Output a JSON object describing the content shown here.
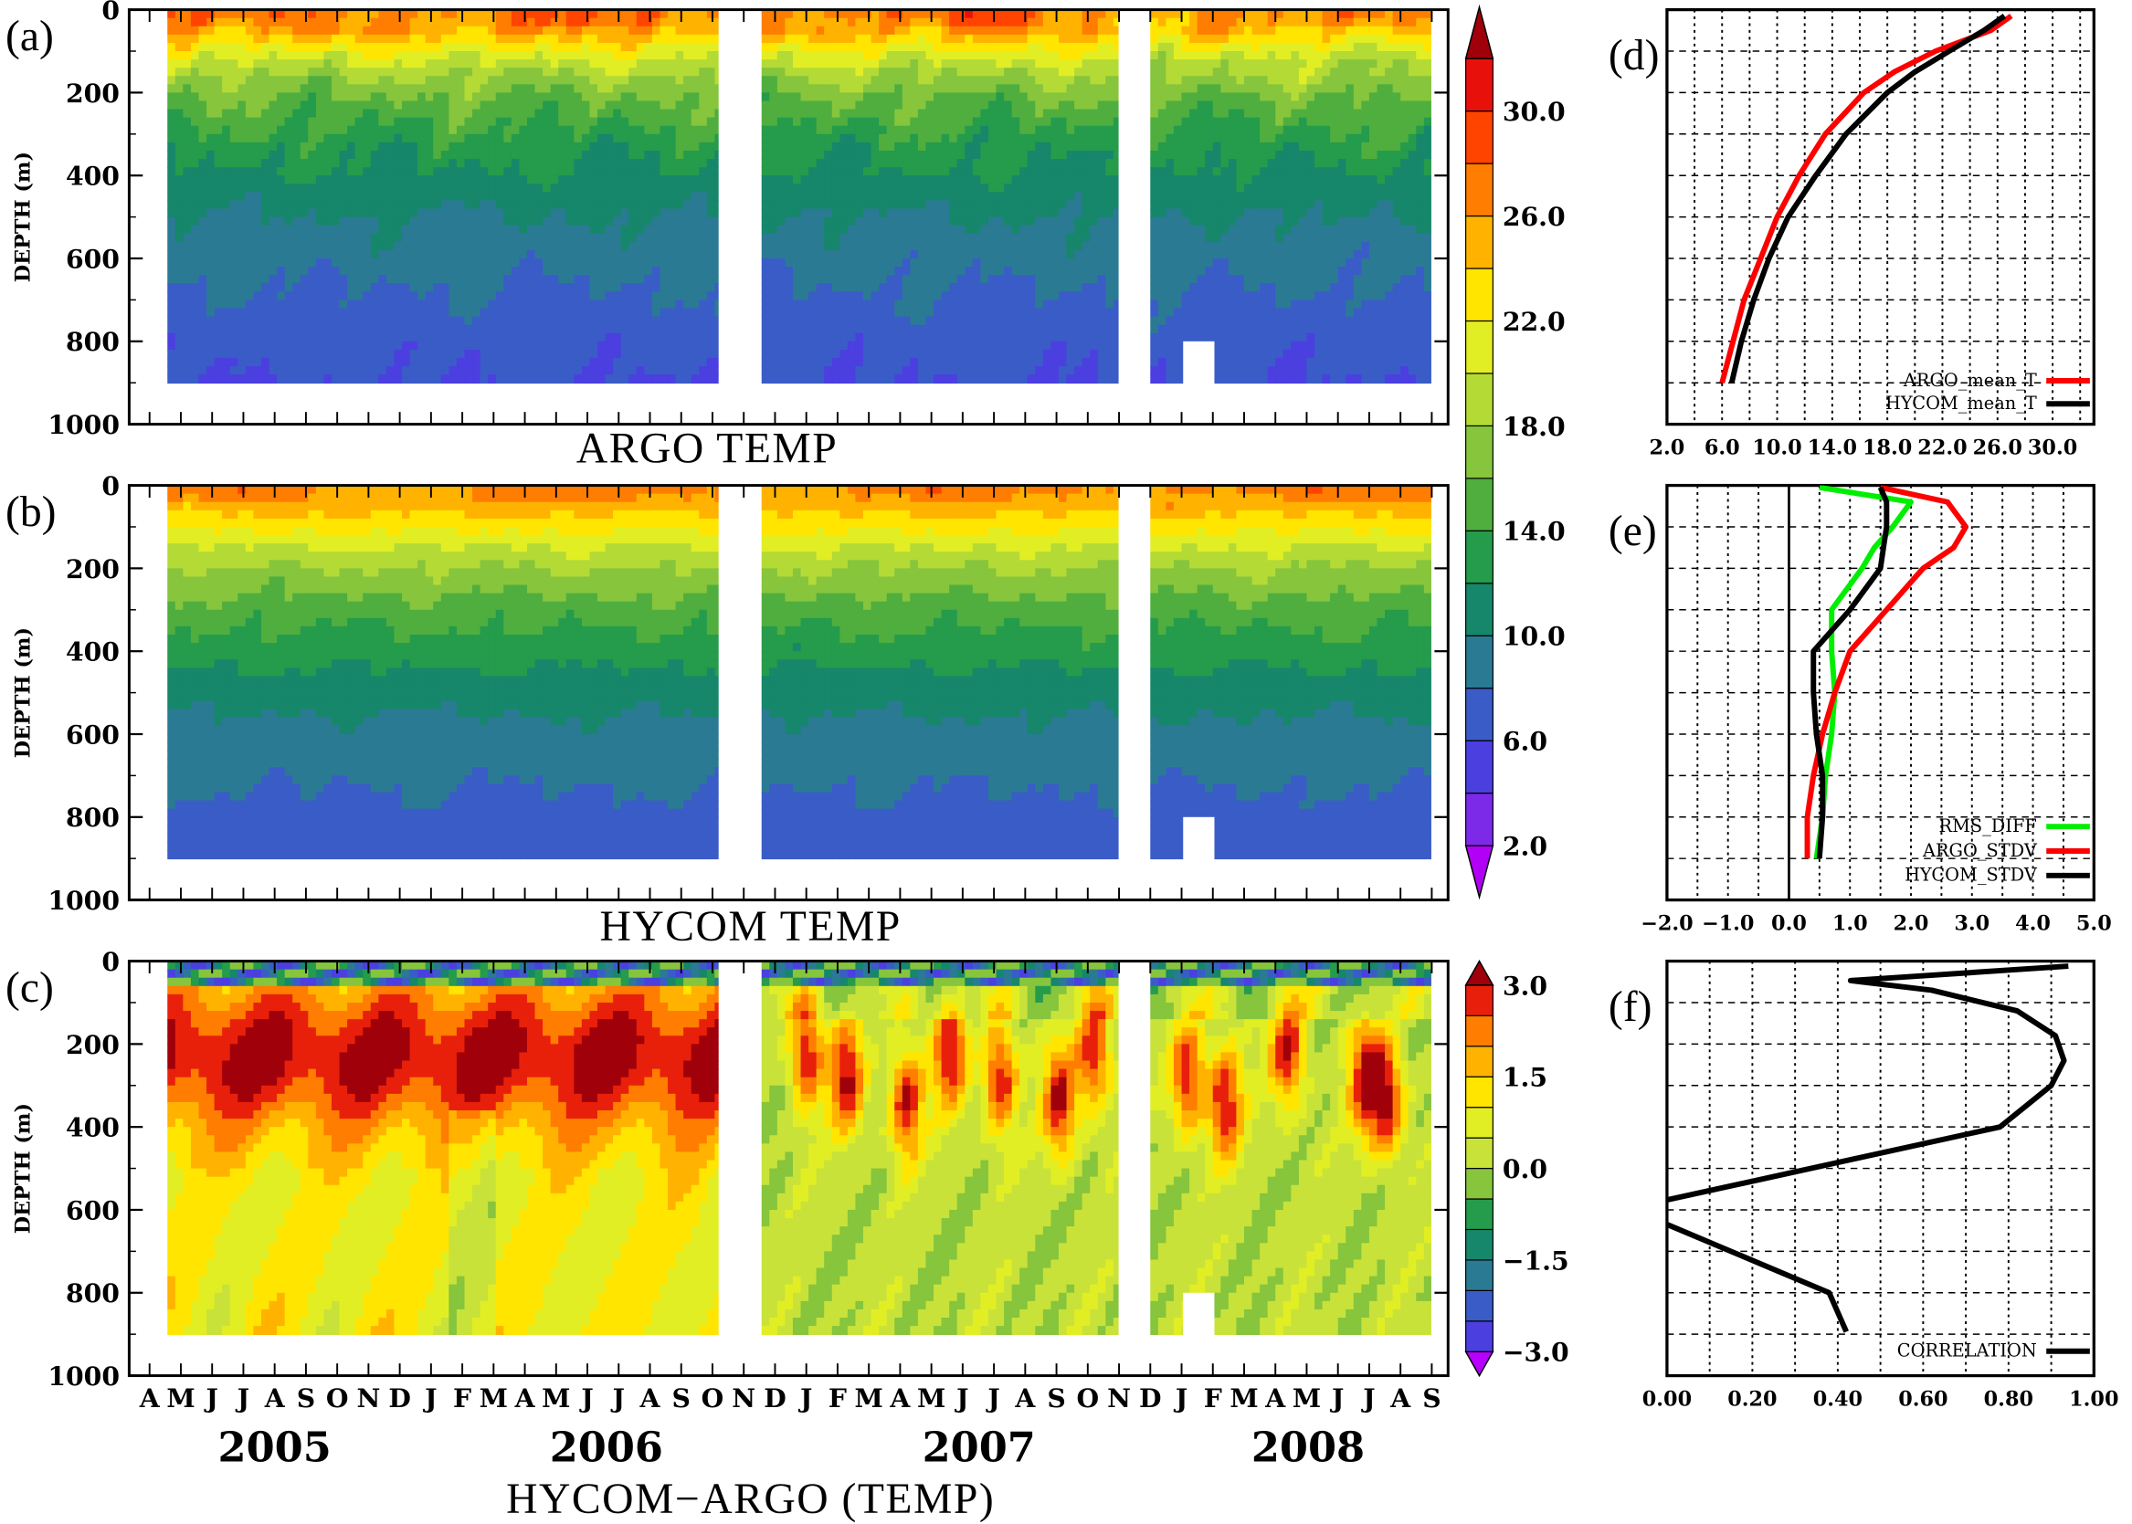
{
  "panel_labels": [
    "(a)",
    "(b)",
    "(c)",
    "(d)",
    "(e)",
    "(f)"
  ],
  "month_ticks": [
    "A",
    "M",
    "J",
    "J",
    "A",
    "S",
    "O",
    "N",
    "D",
    "J",
    "F",
    "M",
    "A",
    "M",
    "J",
    "J",
    "A",
    "S",
    "O",
    "N",
    "D",
    "J",
    "F",
    "M",
    "A",
    "M",
    "J",
    "J",
    "A",
    "S",
    "O",
    "N",
    "D",
    "J",
    "F",
    "M",
    "A",
    "M",
    "J",
    "J",
    "A",
    "S"
  ],
  "years": [
    "2005",
    "2006",
    "2007",
    "2008"
  ],
  "depth_ticks": [
    "0",
    "200",
    "400",
    "600",
    "800",
    "1000"
  ],
  "depth_label": "DEPTH (m)",
  "colorbars": [
    {
      "ticks": [
        "2.0",
        "6.0",
        "10.0",
        "14.0",
        "18.0",
        "22.0",
        "26.0",
        "30.0"
      ],
      "levels": [
        2,
        4,
        6,
        8,
        10,
        12,
        14,
        16,
        18,
        20,
        22,
        24,
        26,
        28,
        30,
        32
      ],
      "colors": [
        "#b100f5",
        "#7c2ae8",
        "#4b3fe0",
        "#3a5cc7",
        "#2a7a94",
        "#16876a",
        "#259b4c",
        "#4fae3e",
        "#86c53c",
        "#b4da36",
        "#e2ee24",
        "#ffe500",
        "#ffb300",
        "#ff7d00",
        "#ff4400",
        "#e8100b",
        "#a0000a"
      ]
    },
    {
      "ticks": [
        "3.0",
        "1.5",
        "0.0",
        "−1.5",
        "−3.0"
      ],
      "levels": [
        -3,
        -2.5,
        -2,
        -1.5,
        -1,
        -0.5,
        0,
        0.5,
        1,
        1.5,
        2,
        2.5,
        3
      ],
      "colors": [
        "#b800ff",
        "#4b3fe0",
        "#3a5cc7",
        "#2a7a94",
        "#16876a",
        "#259b4c",
        "#86c53c",
        "#c8e23a",
        "#e2ee24",
        "#ffe500",
        "#ffb300",
        "#ff7d00",
        "#e8200b",
        "#a0000a"
      ]
    }
  ],
  "chart_data": [
    {
      "id": "a",
      "type": "heatmap",
      "title": "ARGO TEMP",
      "ylabel": "DEPTH (m)",
      "ylim": [
        1000,
        0
      ],
      "data_depth_range": [
        0,
        900
      ],
      "data_periods": [
        "Apr 2005 – Oct 2006",
        "Nov 2006 – Oct 2007",
        "Dec 2007 – Sep 2008"
      ],
      "missing": "Jan 2008, 800–900 m",
      "approx_isotherm_depths_m": {
        "28": 15,
        "26": 35,
        "24": 60,
        "22": 80,
        "20": 110,
        "18": 150,
        "16": 200,
        "14": 260,
        "12": 330,
        "10": 440,
        "8": 600,
        "6": 880
      }
    },
    {
      "id": "b",
      "type": "heatmap",
      "title": "HYCOM TEMP",
      "ylabel": "DEPTH (m)",
      "ylim": [
        1000,
        0
      ],
      "data_depth_range": [
        0,
        900
      ],
      "data_periods": [
        "Apr 2005 – Oct 2006",
        "Nov 2006 – Oct 2007",
        "Dec 2007 – Sep 2008"
      ],
      "missing": "Jan 2008, 800–900 m",
      "approx_isotherm_depths_m": {
        "28": 10,
        "26": 35,
        "24": 65,
        "22": 95,
        "20": 130,
        "18": 180,
        "16": 240,
        "14": 310,
        "12": 390,
        "10": 490,
        "8": 720
      }
    },
    {
      "id": "c",
      "type": "heatmap",
      "title": "HYCOM−ARGO (TEMP)",
      "ylabel": "DEPTH (m)",
      "ylim": [
        1000,
        0
      ],
      "data_depth_range": [
        0,
        900
      ],
      "data_periods": [
        "Apr 2005 – Oct 2006",
        "Nov 2006 – Oct 2007",
        "Dec 2007 – Sep 2008"
      ],
      "approx_pattern": {
        "surface_0_50m": -1.5,
        "2005_2006_100_400m": 2.8,
        "2005_2006_deep": 1.2,
        "2007_2008_peaks_150_400m": 2.5,
        "2007_2008_deep": 0.2
      }
    },
    {
      "id": "d",
      "type": "line",
      "xlim": [
        2,
        33
      ],
      "ylim": [
        1000,
        0
      ],
      "xticks": [
        "2.0",
        "6.0",
        "10.0",
        "14.0",
        "18.0",
        "22.0",
        "26.0",
        "30.0"
      ],
      "depth": [
        15,
        50,
        100,
        150,
        200,
        300,
        400,
        500,
        600,
        700,
        800,
        900
      ],
      "series": [
        {
          "name": "ARGO_mean_T",
          "color": "#ff0000",
          "values": [
            27.0,
            25.5,
            21.5,
            18.5,
            16.3,
            13.5,
            11.6,
            10.0,
            8.8,
            7.6,
            6.8,
            6.0
          ]
        },
        {
          "name": "HYCOM_mean_T",
          "color": "#000000",
          "values": [
            26.5,
            25.0,
            22.5,
            20.0,
            18.0,
            15.0,
            12.8,
            10.8,
            9.4,
            8.3,
            7.4,
            6.7
          ]
        }
      ]
    },
    {
      "id": "e",
      "type": "line",
      "xlim": [
        -2,
        5
      ],
      "ylim": [
        1000,
        0
      ],
      "xticks": [
        "−2.0",
        "−1.0",
        "0.0",
        "1.0",
        "2.0",
        "3.0",
        "4.0",
        "5.0"
      ],
      "depth": [
        5,
        40,
        100,
        150,
        200,
        300,
        400,
        500,
        600,
        700,
        800,
        900
      ],
      "series": [
        {
          "name": "RMS_DIFF",
          "color": "#00ee00",
          "values": [
            0.5,
            2.0,
            1.7,
            1.4,
            1.2,
            0.7,
            0.7,
            0.75,
            0.7,
            0.6,
            0.55,
            0.45
          ]
        },
        {
          "name": "ARGO_STDV",
          "color": "#ff0000",
          "values": [
            1.5,
            2.6,
            2.9,
            2.7,
            2.2,
            1.6,
            1.0,
            0.75,
            0.55,
            0.4,
            0.3,
            0.3
          ]
        },
        {
          "name": "HYCOM_STDV",
          "color": "#000000",
          "values": [
            1.5,
            1.6,
            1.6,
            1.55,
            1.5,
            1.0,
            0.4,
            0.4,
            0.45,
            0.55,
            0.55,
            0.5
          ]
        }
      ]
    },
    {
      "id": "f",
      "type": "line",
      "xlim": [
        0,
        1
      ],
      "ylim": [
        1000,
        0
      ],
      "xticks": [
        "0.00",
        "0.20",
        "0.40",
        "0.60",
        "0.80",
        "1.00"
      ],
      "depth": [
        12,
        47,
        70,
        120,
        180,
        240,
        300,
        400,
        576,
        600,
        635,
        800,
        894
      ],
      "series": [
        {
          "name": "CORRELATION",
          "color": "#000000",
          "values": [
            0.94,
            0.43,
            0.62,
            0.82,
            0.91,
            0.93,
            0.9,
            0.78,
            0.0,
            -0.05,
            0.0,
            0.38,
            0.42
          ]
        }
      ]
    }
  ]
}
